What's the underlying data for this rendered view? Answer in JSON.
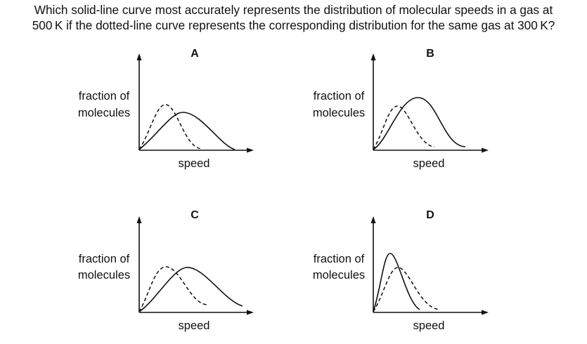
{
  "question": {
    "line1": "Which solid-line curve most accurately represents the distribution of molecular speeds in a gas at",
    "line2": "500 K if the dotted-line curve represents the corresponding distribution for the same gas at 300 K?"
  },
  "panels": [
    {
      "letter": "A",
      "ylabel_line1": "fraction of",
      "ylabel_line2": "molecules",
      "xlabel": "speed"
    },
    {
      "letter": "B",
      "ylabel_line1": "fraction of",
      "ylabel_line2": "molecules",
      "xlabel": "speed"
    },
    {
      "letter": "C",
      "ylabel_line1": "fraction of",
      "ylabel_line2": "molecules",
      "xlabel": "speed"
    },
    {
      "letter": "D",
      "ylabel_line1": "fraction of",
      "ylabel_line2": "molecules",
      "xlabel": "speed"
    }
  ]
}
